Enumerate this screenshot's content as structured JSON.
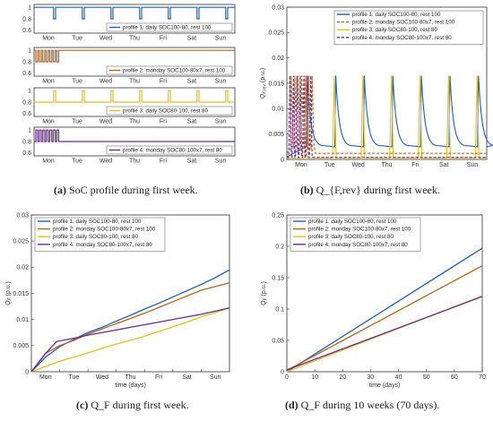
{
  "colors": {
    "profile1": "#1f5fbf",
    "profile2": "#b5651d",
    "profile3": "#e3c11f",
    "profile4": "#6a2a8c",
    "axis": "#333333"
  },
  "days": [
    "Mon",
    "Tue",
    "Wed",
    "Thu",
    "Fri",
    "Sat",
    "Sun"
  ],
  "captions": {
    "a": {
      "label": "(a)",
      "text": "SoC profile during first week."
    },
    "b": {
      "label": "(b)",
      "text": "Q_{F,rev} during first week."
    },
    "c": {
      "label": "(c)",
      "text": "Q_F during first week."
    },
    "d": {
      "label": "(d)",
      "text": "Q_F during 10 weeks (70 days)."
    }
  },
  "chart_data": [
    {
      "id": "a",
      "type": "line",
      "subplots": [
        {
          "name": "profile 1: daily SOC100-80, rest 100",
          "yticks": [
            "1",
            "0.8",
            "0.6"
          ],
          "rest": 1.0,
          "low": 0.8,
          "pattern": "daily"
        },
        {
          "name": "profile 2: monday SOC100-80x7, rest 100",
          "yticks": [
            "1",
            "0.8",
            "0.6"
          ],
          "rest": 1.0,
          "low": 0.8,
          "pattern": "monday"
        },
        {
          "name": "profile 3: daily SOC80-100, rest 80",
          "yticks": [
            "1",
            "0.8",
            "0.6"
          ],
          "rest": 0.8,
          "high": 1.0,
          "pattern": "daily"
        },
        {
          "name": "profile 4: monday SOC80-100x7, rest 80",
          "yticks": [
            "1",
            "0.8",
            "0.6"
          ],
          "rest": 0.8,
          "high": 1.0,
          "pattern": "monday"
        }
      ],
      "xticks": [
        "Mon",
        "Tue",
        "Wed",
        "Thu",
        "Fri",
        "Sat",
        "Sun"
      ]
    },
    {
      "id": "b",
      "type": "line",
      "ylabel_main": "Q",
      "ylabel_sub": "F,rev",
      "ylabel_unit": "(p.u.)",
      "ylim": [
        0,
        0.03
      ],
      "yticks": [
        "0",
        "0.005",
        "0.01",
        "0.015",
        "0.02",
        "0.025",
        "0.03"
      ],
      "xticks": [
        "Mon",
        "Tue",
        "Wed",
        "Thu",
        "Fri",
        "Sat",
        "Sun"
      ],
      "series": [
        {
          "name": "profile 1: daily SOC100-80, rest 100",
          "dash": false,
          "baseline": 0.0025,
          "peak": 0.0165
        },
        {
          "name": "profile 2: monday SOC100-80x7, rest 100",
          "dash": true,
          "baseline": 0.0012,
          "peak": 0.0165
        },
        {
          "name": "profile 3: daily SOC80-100, rest 80",
          "dash": false,
          "baseline": 0.0003,
          "peak": 0.0165
        },
        {
          "name": "profile 4: monday SOC80-100x7, rest 80",
          "dash": true,
          "baseline": 0.0004,
          "peak": 0.0165
        }
      ]
    },
    {
      "id": "c",
      "type": "line",
      "xlabel": "time (days)",
      "ylabel_main": "Q",
      "ylabel_sub": "F",
      "ylabel_unit": "(p.u.)",
      "ylim": [
        0,
        0.03
      ],
      "yticks": [
        "0",
        "0.005",
        "0.01",
        "0.015",
        "0.02",
        "0.025",
        "0.03"
      ],
      "xticks": [
        "Mon",
        "Tue",
        "Wed",
        "Thu",
        "Fri",
        "Sat",
        "Sun"
      ],
      "series": [
        {
          "name": "profile 1: daily SOC100-80, rest 100",
          "x": [
            0,
            0.5,
            1,
            1.5,
            2,
            2.5,
            3,
            3.5,
            4,
            4.5,
            5,
            5.5,
            6,
            6.5,
            7
          ],
          "y": [
            0,
            0.0028,
            0.0048,
            0.0062,
            0.0075,
            0.0085,
            0.0097,
            0.0108,
            0.012,
            0.0131,
            0.0143,
            0.0155,
            0.0167,
            0.018,
            0.0195
          ]
        },
        {
          "name": "profile 2: monday SOC100-80x7, rest 100",
          "x": [
            0,
            0.5,
            1,
            1.5,
            2,
            2.5,
            3,
            3.5,
            4,
            4.5,
            5,
            5.5,
            6,
            6.5,
            7
          ],
          "y": [
            0,
            0.0035,
            0.005,
            0.006,
            0.0072,
            0.0082,
            0.0092,
            0.0102,
            0.0112,
            0.0123,
            0.0134,
            0.0145,
            0.0156,
            0.0163,
            0.017
          ]
        },
        {
          "name": "profile 3: daily SOC80-100, rest 80",
          "x": [
            0,
            0.5,
            1,
            1.5,
            2,
            2.5,
            3,
            3.5,
            4,
            4.5,
            5,
            5.5,
            6,
            6.5,
            7
          ],
          "y": [
            0,
            0.001,
            0.002,
            0.0028,
            0.0036,
            0.0045,
            0.0053,
            0.006,
            0.0068,
            0.0077,
            0.0086,
            0.0095,
            0.0105,
            0.0113,
            0.0123
          ]
        },
        {
          "name": "profile 4: monday SOC80-100x7, rest 80",
          "x": [
            0,
            0.5,
            0.9,
            1.5,
            2,
            2.5,
            3,
            3.5,
            4,
            4.5,
            5,
            5.5,
            6,
            6.5,
            7
          ],
          "y": [
            0,
            0.0035,
            0.0058,
            0.0064,
            0.007,
            0.0075,
            0.008,
            0.0085,
            0.009,
            0.0095,
            0.01,
            0.0105,
            0.011,
            0.0116,
            0.0122
          ]
        }
      ]
    },
    {
      "id": "d",
      "type": "line",
      "xlabel": "time (days)",
      "ylabel_main": "Q",
      "ylabel_sub": "F",
      "ylabel_unit": "(p.u.)",
      "xlim": [
        0,
        70
      ],
      "ylim": [
        0,
        0.25
      ],
      "xticks": [
        "0",
        "10",
        "20",
        "30",
        "40",
        "50",
        "60",
        "70"
      ],
      "yticks": [
        "0",
        "0.05",
        "0.1",
        "0.15",
        "0.2",
        "0.25"
      ],
      "series": [
        {
          "name": "profile 1: daily SOC100-80, rest 100",
          "x": [
            0,
            70
          ],
          "y": [
            0,
            0.197
          ]
        },
        {
          "name": "profile 2: monday SOC100-80x7, rest 100",
          "x": [
            0,
            70
          ],
          "y": [
            0.002,
            0.169
          ]
        },
        {
          "name": "profile 3: daily SOC80-100, rest 80",
          "x": [
            0,
            70
          ],
          "y": [
            0,
            0.121
          ]
        },
        {
          "name": "profile 4: monday SOC80-100x7, rest 80",
          "x": [
            0,
            70
          ],
          "y": [
            0.003,
            0.12
          ]
        }
      ]
    }
  ]
}
